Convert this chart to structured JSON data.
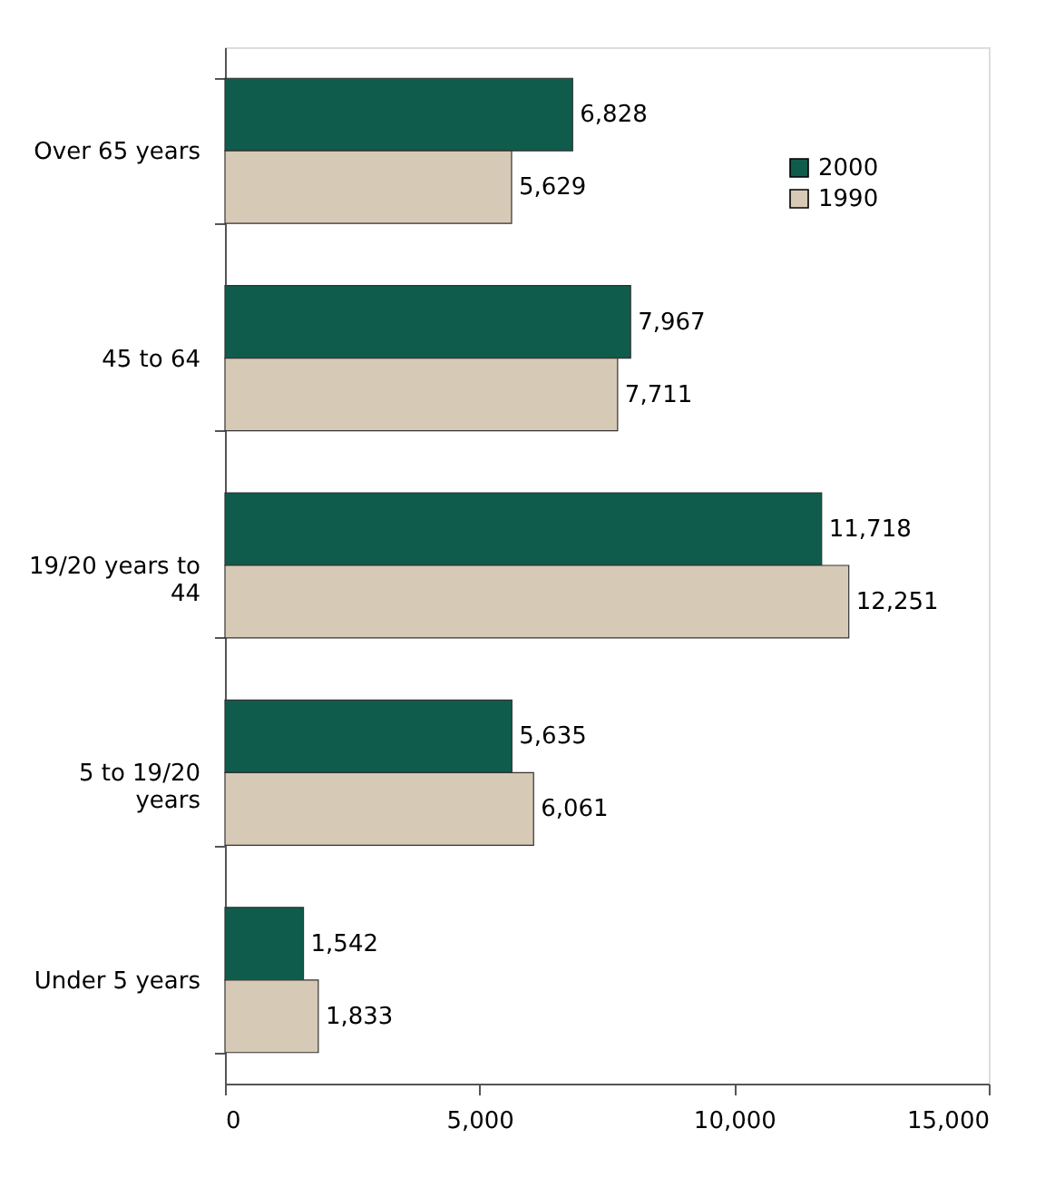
{
  "chart_data": {
    "type": "bar",
    "orientation": "horizontal",
    "categories": [
      "Over 65 years",
      "45 to 64",
      "19/20 years to 44",
      "5 to 19/20 years",
      "Under 5 years"
    ],
    "series": [
      {
        "name": "2000",
        "color": "#0f5c4c",
        "values": [
          6828,
          7967,
          11718,
          5635,
          1542
        ],
        "value_labels": [
          "6,828",
          "7,967",
          "11,718",
          "5,635",
          "1,542"
        ]
      },
      {
        "name": "1990",
        "color": "#d6cab6",
        "values": [
          5629,
          7711,
          12251,
          6061,
          1833
        ],
        "value_labels": [
          "5,629",
          "7,711",
          "12,251",
          "6,061",
          "1,833"
        ]
      }
    ],
    "xlim": [
      0,
      15000
    ],
    "xticks": [
      0,
      {
        "value": 5000,
        "label": "5,000"
      },
      {
        "value": 10000,
        "label": "10,000"
      },
      {
        "value": 15000,
        "label": "15,000"
      }
    ],
    "legend": "top right",
    "grid": false
  }
}
